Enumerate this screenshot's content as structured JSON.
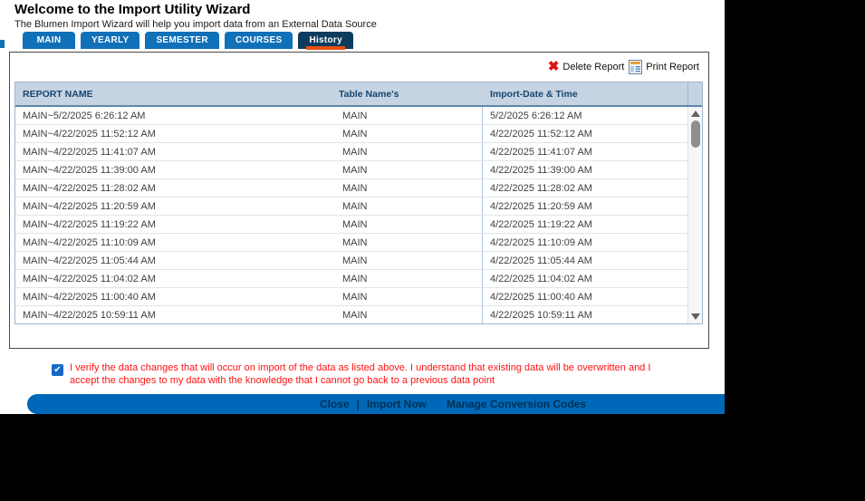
{
  "page": {
    "title": "Welcome to the Import Utility Wizard",
    "subtitle": "The Blumen Import Wizard will help you import data from an External Data Source"
  },
  "tabs": [
    {
      "label": "MAIN",
      "active": false
    },
    {
      "label": "YEARLY",
      "active": false
    },
    {
      "label": "SEMESTER",
      "active": false
    },
    {
      "label": "COURSES",
      "active": false
    },
    {
      "label": "History",
      "active": true
    }
  ],
  "toolbar": {
    "delete_icon": "✖",
    "delete_label": "Delete Report",
    "print_label": "Print Report"
  },
  "table": {
    "columns": [
      "REPORT NAME",
      "Table Name's",
      "Import-Date & Time"
    ],
    "rows": [
      {
        "report": "MAIN~5/2/2025 6:26:12 AM",
        "table": "MAIN",
        "date": "5/2/2025 6:26:12 AM"
      },
      {
        "report": "MAIN~4/22/2025 11:52:12 AM",
        "table": "MAIN",
        "date": "4/22/2025 11:52:12 AM"
      },
      {
        "report": "MAIN~4/22/2025 11:41:07 AM",
        "table": "MAIN",
        "date": "4/22/2025 11:41:07 AM"
      },
      {
        "report": "MAIN~4/22/2025 11:39:00 AM",
        "table": "MAIN",
        "date": "4/22/2025 11:39:00 AM"
      },
      {
        "report": "MAIN~4/22/2025 11:28:02 AM",
        "table": "MAIN",
        "date": "4/22/2025 11:28:02 AM"
      },
      {
        "report": "MAIN~4/22/2025 11:20:59 AM",
        "table": "MAIN",
        "date": "4/22/2025 11:20:59 AM"
      },
      {
        "report": "MAIN~4/22/2025 11:19:22 AM",
        "table": "MAIN",
        "date": "4/22/2025 11:19:22 AM"
      },
      {
        "report": "MAIN~4/22/2025 11:10:09 AM",
        "table": "MAIN",
        "date": "4/22/2025 11:10:09 AM"
      },
      {
        "report": "MAIN~4/22/2025 11:05:44 AM",
        "table": "MAIN",
        "date": "4/22/2025 11:05:44 AM"
      },
      {
        "report": "MAIN~4/22/2025 11:04:02 AM",
        "table": "MAIN",
        "date": "4/22/2025 11:04:02 AM"
      },
      {
        "report": "MAIN~4/22/2025 11:00:40 AM",
        "table": "MAIN",
        "date": "4/22/2025 11:00:40 AM"
      },
      {
        "report": "MAIN~4/22/2025 10:59:11 AM",
        "table": "MAIN",
        "date": "4/22/2025 10:59:11 AM"
      }
    ]
  },
  "confirmation": {
    "checked": true,
    "checkmark": "✔",
    "text": "I verify the data changes that will occur on import of the data as listed above. I understand that existing data will be overwritten and I accept the changes to my data with the knowledge that I cannot go back to a previous data point"
  },
  "footer": {
    "close": "Close",
    "separator": "|",
    "import_now": "Import Now",
    "manage_codes": "Manage Conversion Codes"
  },
  "colors": {
    "tab_blue": "#1070b8",
    "tab_active_navy": "#0e3c5e",
    "accent_orange": "#e8500a",
    "table_header_bg": "#c5d3e2",
    "footer_bar_blue": "#0068b8",
    "footer_text_navy": "#003055",
    "warning_red": "#ff1212",
    "delete_red": "#dd1111"
  }
}
